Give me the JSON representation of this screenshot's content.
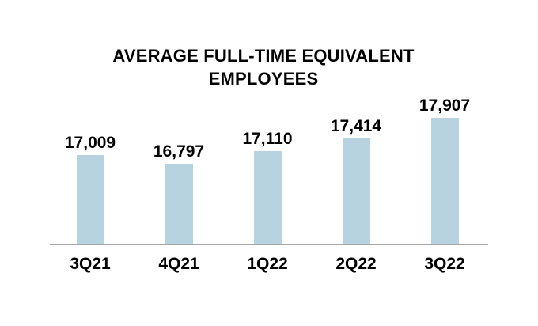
{
  "chart_data": {
    "type": "bar",
    "title": "AVERAGE FULL-TIME EQUIVALENT EMPLOYEES",
    "categories": [
      "3Q21",
      "4Q21",
      "1Q22",
      "2Q22",
      "3Q22"
    ],
    "values": [
      17009,
      16797,
      17110,
      17414,
      17907
    ],
    "value_labels": [
      "17,009",
      "16,797",
      "17,110",
      "17,414",
      "17,907"
    ],
    "xlabel": "",
    "ylabel": "",
    "ylim": [
      14864,
      17907
    ],
    "grid": false,
    "legend": false,
    "bar_color": "#B8D3E0",
    "axis_line_color": "#A6A6A6",
    "text_color": "#000000"
  }
}
